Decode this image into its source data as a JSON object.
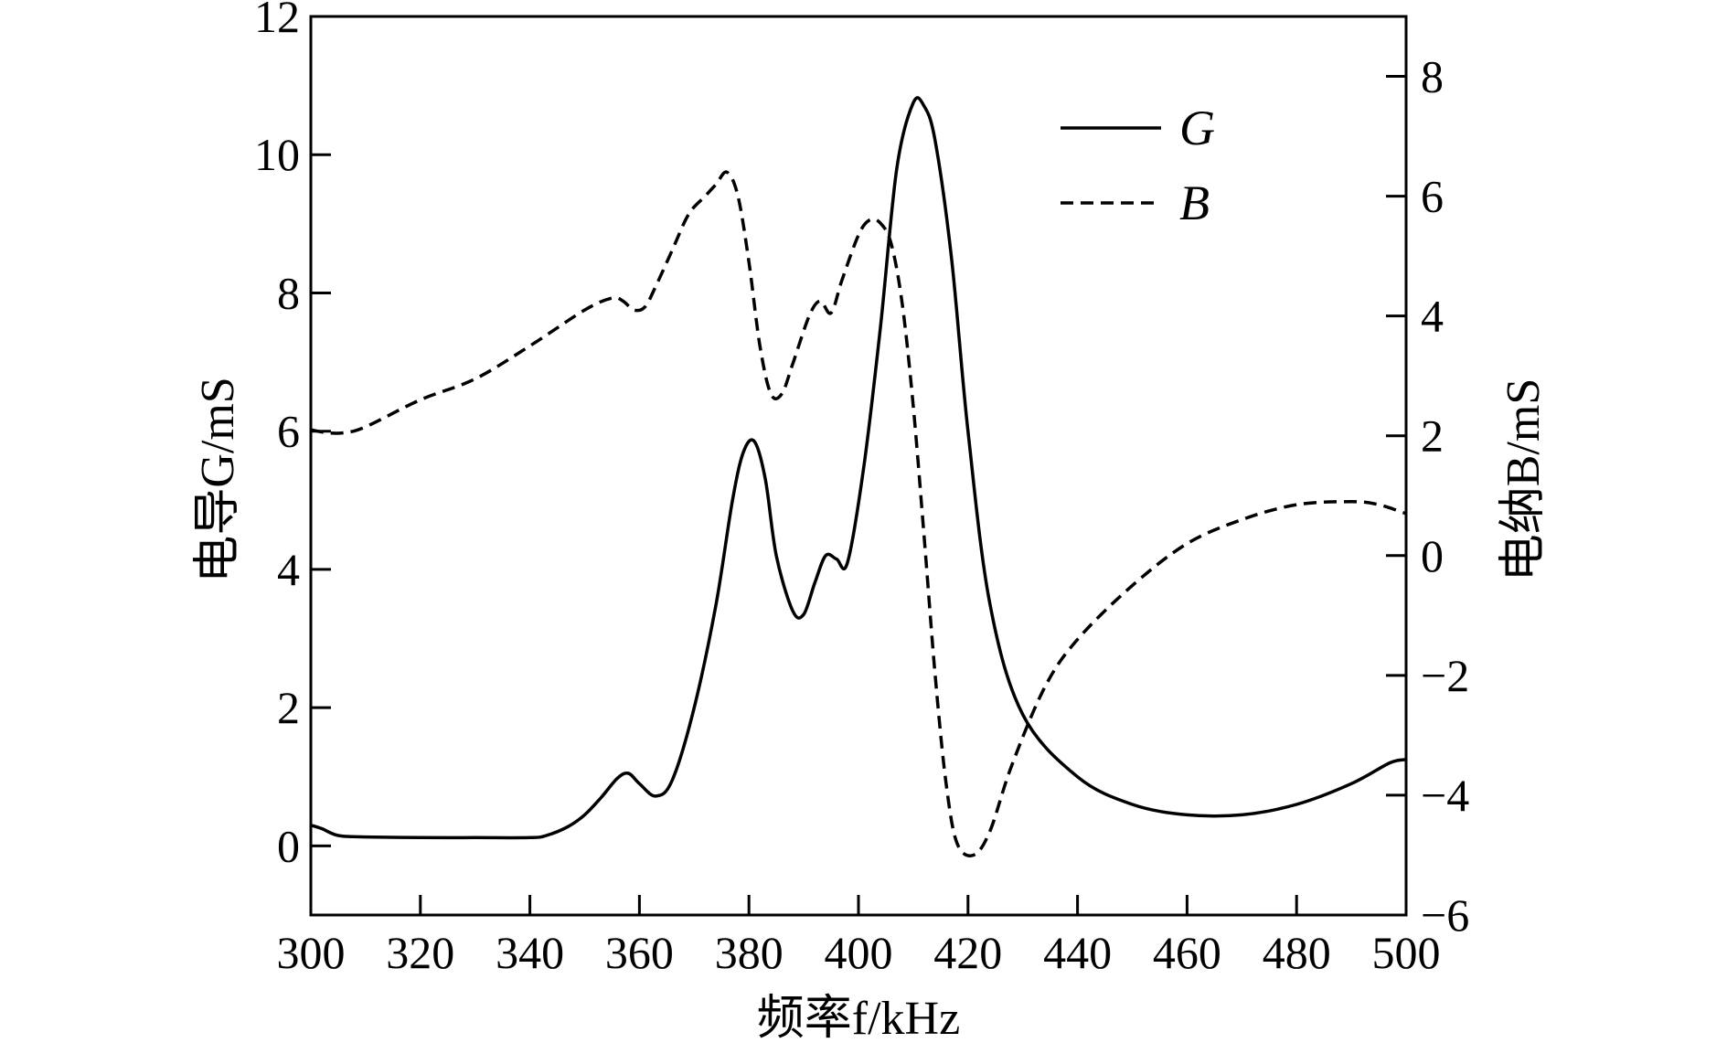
{
  "chart_data": {
    "type": "line",
    "xlabel": "频率f/kHz",
    "ylabel_left": "电导G/mS",
    "ylabel_right": "电纳B/mS",
    "xlim": [
      300,
      500
    ],
    "ylim_left": [
      -1,
      12
    ],
    "ylim_right": [
      -6,
      9
    ],
    "x_ticks": [
      300,
      320,
      340,
      360,
      380,
      400,
      420,
      440,
      460,
      480,
      500
    ],
    "y_left_ticks": [
      0,
      2,
      4,
      6,
      8,
      10,
      12
    ],
    "y_right_ticks": [
      -6,
      -4,
      -2,
      0,
      2,
      4,
      6,
      8
    ],
    "y_right_tick_labels": [
      "−6",
      "−4",
      "−2",
      "0",
      "2",
      "4",
      "6",
      "8"
    ],
    "grid": false,
    "legend_position": "top-right",
    "series": [
      {
        "name": "G",
        "axis": "left",
        "style": "solid",
        "x": [
          300,
          302,
          305,
          310,
          320,
          330,
          340,
          343,
          347,
          350,
          353,
          356,
          358,
          360,
          363,
          366,
          370,
          374,
          377,
          379,
          381,
          383,
          385,
          388,
          390,
          392,
          394,
          396,
          398,
          401,
          404,
          407,
          410,
          412,
          414,
          417,
          420,
          424,
          430,
          440,
          450,
          460,
          470,
          480,
          490,
          497,
          500
        ],
        "values": [
          0.3,
          0.25,
          0.15,
          0.13,
          0.12,
          0.12,
          0.12,
          0.15,
          0.28,
          0.45,
          0.7,
          0.98,
          1.05,
          0.9,
          0.72,
          0.95,
          2.0,
          3.5,
          5.0,
          5.7,
          5.85,
          5.3,
          4.2,
          3.4,
          3.35,
          3.8,
          4.2,
          4.15,
          4.1,
          5.5,
          7.5,
          9.8,
          10.75,
          10.7,
          10.2,
          8.5,
          6.0,
          3.5,
          1.9,
          1.0,
          0.6,
          0.45,
          0.45,
          0.6,
          0.9,
          1.2,
          1.25
        ]
      },
      {
        "name": "B",
        "axis": "right",
        "style": "dashed",
        "x": [
          300,
          303,
          306,
          310,
          320,
          330,
          340,
          350,
          355,
          357,
          359,
          361,
          363,
          366,
          369,
          372,
          374,
          376,
          378,
          380,
          382,
          384,
          386,
          388,
          391,
          393,
          395,
          397,
          400,
          402,
          404,
          406,
          408,
          410,
          412,
          414,
          416,
          418,
          421,
          424,
          428,
          434,
          440,
          450,
          460,
          470,
          480,
          490,
          495,
          500
        ],
        "values": [
          2.1,
          2.05,
          2.05,
          2.15,
          2.6,
          2.95,
          3.5,
          4.1,
          4.3,
          4.25,
          4.1,
          4.15,
          4.5,
          5.1,
          5.7,
          6.0,
          6.2,
          6.4,
          6.0,
          4.9,
          3.5,
          2.7,
          2.7,
          3.2,
          4.0,
          4.25,
          4.05,
          4.6,
          5.35,
          5.6,
          5.55,
          5.2,
          4.2,
          2.5,
          0.3,
          -2.0,
          -3.8,
          -4.8,
          -5.0,
          -4.6,
          -3.5,
          -2.2,
          -1.4,
          -0.5,
          0.2,
          0.6,
          0.85,
          0.9,
          0.85,
          0.7
        ]
      }
    ]
  }
}
